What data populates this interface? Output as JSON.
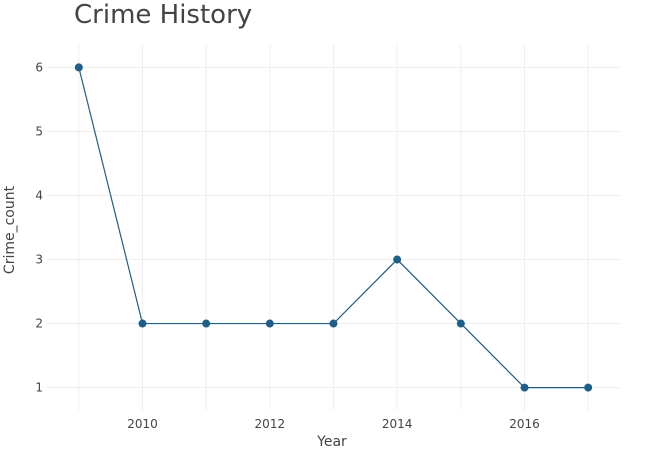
{
  "chart_data": {
    "type": "line",
    "title": "Crime History",
    "xlabel": "Year",
    "ylabel": "Crime_count",
    "x": [
      2009,
      2010,
      2011,
      2012,
      2013,
      2014,
      2015,
      2016,
      2017
    ],
    "series": [
      {
        "values": [
          6,
          2,
          2,
          2,
          2,
          3,
          2,
          1,
          1
        ],
        "color": "#1f5e87"
      }
    ],
    "xlim": [
      2008.5,
      2017.5
    ],
    "ylim": [
      0.65,
      6.35
    ],
    "xticks": [
      2010,
      2012,
      2014,
      2016
    ],
    "yticks": [
      1,
      2,
      3,
      4,
      5,
      6
    ],
    "grid": true,
    "gridColor": "#eeeeee",
    "legend": "none"
  }
}
